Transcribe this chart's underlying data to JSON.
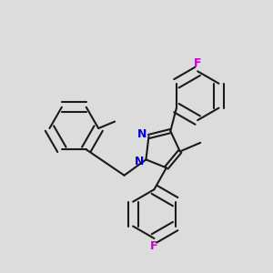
{
  "bg": "#dcdcdc",
  "bc": "#1a1a1a",
  "nc": "#0000cc",
  "fc": "#cc00cc",
  "lw": 1.5,
  "dbo": 0.007,
  "figsize": [
    3.0,
    3.0
  ],
  "dpi": 100,
  "xlim": [
    0.0,
    1.0
  ],
  "ylim": [
    0.0,
    1.0
  ]
}
